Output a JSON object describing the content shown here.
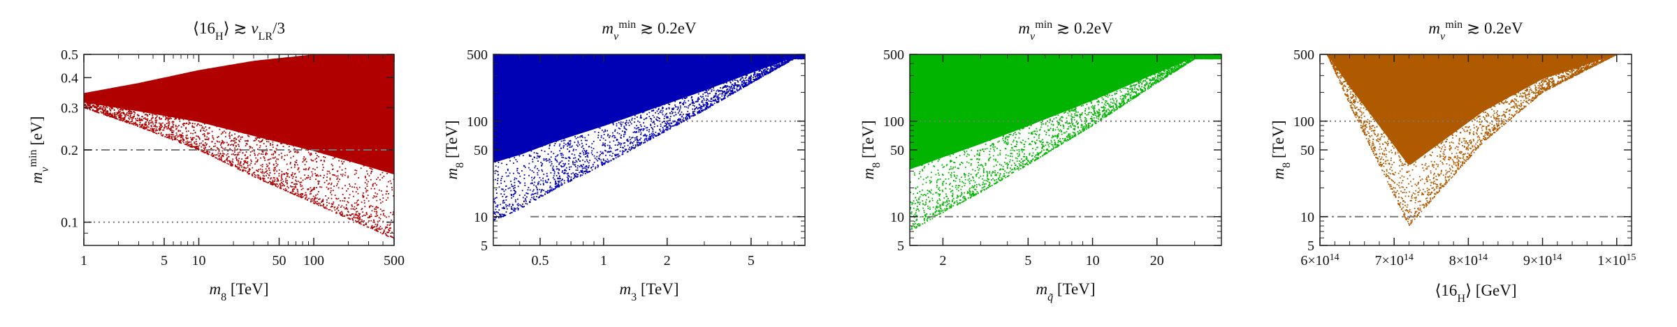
{
  "chart_data": [
    {
      "type": "scatter",
      "title": "⟨16_H⟩ ≳ v_LR/3",
      "title_parts": [
        "⟨16",
        "H",
        "⟩ ≳ ",
        "v",
        "LR",
        "/3"
      ],
      "xlabel_parts": [
        "m",
        "8",
        " [TeV]"
      ],
      "ylabel_parts": [
        "m",
        "ν",
        "min",
        " [eV]"
      ],
      "xscale": "log",
      "yscale": "log",
      "xlim": [
        1,
        500
      ],
      "ylim": [
        0.08,
        0.5
      ],
      "xticks": [
        {
          "v": 1,
          "label": "1"
        },
        {
          "v": 5,
          "label": "5"
        },
        {
          "v": 10,
          "label": "10"
        },
        {
          "v": 50,
          "label": "50"
        },
        {
          "v": 100,
          "label": "100"
        },
        {
          "v": 500,
          "label": "500"
        }
      ],
      "yticks": [
        {
          "v": 0.1,
          "label": "0.1"
        },
        {
          "v": 0.2,
          "label": "0.2"
        },
        {
          "v": 0.3,
          "label": "0.3"
        },
        {
          "v": 0.4,
          "label": "0.4"
        },
        {
          "v": 0.5,
          "label": "0.5"
        }
      ],
      "ref_lines": [
        {
          "y": 0.2,
          "style": "dashdot"
        },
        {
          "y": 0.1,
          "style": "dotted"
        }
      ],
      "color": "#b00000",
      "region": {
        "x": [
          1,
          3,
          10,
          30,
          100,
          300,
          500
        ],
        "y_low": [
          0.3,
          0.25,
          0.2,
          0.155,
          0.12,
          0.095,
          0.085
        ],
        "y_high": [
          0.345,
          0.38,
          0.43,
          0.47,
          0.5,
          0.5,
          0.5
        ]
      }
    },
    {
      "type": "scatter",
      "title": "m_ν^min ≳ 0.2eV",
      "title_parts": [
        "m",
        "ν",
        "min",
        " ≳ 0.2eV"
      ],
      "xlabel_parts": [
        "m",
        "3",
        " [TeV]"
      ],
      "ylabel_parts": [
        "m",
        "8",
        " [TeV]"
      ],
      "xscale": "log",
      "yscale": "log",
      "xlim": [
        0.3,
        9
      ],
      "ylim": [
        5,
        500
      ],
      "xticks": [
        {
          "v": 0.5,
          "label": "0.5"
        },
        {
          "v": 1,
          "label": "1"
        },
        {
          "v": 2,
          "label": "2"
        },
        {
          "v": 5,
          "label": "5"
        }
      ],
      "yticks": [
        {
          "v": 5,
          "label": "5"
        },
        {
          "v": 10,
          "label": "10"
        },
        {
          "v": 50,
          "label": "50"
        },
        {
          "v": 100,
          "label": "100"
        },
        {
          "v": 500,
          "label": "500"
        }
      ],
      "ref_lines": [
        {
          "y": 100,
          "style": "dotted",
          "x_from": 2
        },
        {
          "y": 10,
          "style": "dashdot",
          "x_from": 0.45
        }
      ],
      "color": "#0000b4",
      "region": {
        "x": [
          0.3,
          0.4,
          0.6,
          1.0,
          2.0,
          3.0,
          5.0,
          8.0
        ],
        "y_low": [
          9,
          12,
          20,
          35,
          80,
          130,
          250,
          450
        ],
        "y_high": [
          500,
          500,
          500,
          500,
          500,
          500,
          500,
          500
        ]
      }
    },
    {
      "type": "scatter",
      "title": "m_ν^min ≳ 0.2eV",
      "title_parts": [
        "m",
        "ν",
        "min",
        " ≳ 0.2eV"
      ],
      "xlabel_parts": [
        "m",
        "q̃",
        " [TeV]"
      ],
      "ylabel_parts": [
        "m",
        "8",
        " [TeV]"
      ],
      "xscale": "log",
      "yscale": "log",
      "xlim": [
        1.4,
        40
      ],
      "ylim": [
        5,
        500
      ],
      "xticks": [
        {
          "v": 2,
          "label": "2"
        },
        {
          "v": 5,
          "label": "5"
        },
        {
          "v": 10,
          "label": "10"
        },
        {
          "v": 20,
          "label": "20"
        }
      ],
      "yticks": [
        {
          "v": 5,
          "label": "5"
        },
        {
          "v": 10,
          "label": "10"
        },
        {
          "v": 50,
          "label": "50"
        },
        {
          "v": 100,
          "label": "100"
        },
        {
          "v": 500,
          "label": "500"
        }
      ],
      "ref_lines": [
        {
          "y": 100,
          "style": "dotted"
        },
        {
          "y": 10,
          "style": "dashdot"
        }
      ],
      "color": "#00b400",
      "region": {
        "x": [
          1.4,
          2,
          3,
          5,
          10,
          20,
          30
        ],
        "y_low": [
          7,
          11,
          18,
          35,
          90,
          250,
          450
        ],
        "y_high": [
          500,
          500,
          500,
          500,
          500,
          500,
          500
        ]
      }
    },
    {
      "type": "scatter",
      "title": "m_ν^min ≳ 0.2eV",
      "title_parts": [
        "m",
        "ν",
        "min",
        " ≳ 0.2eV"
      ],
      "xlabel_parts": [
        "⟨16",
        "H",
        "⟩ [GeV]"
      ],
      "ylabel_parts": [
        "m",
        "8",
        " [TeV]"
      ],
      "xscale": "linear",
      "yscale": "log",
      "xlim": [
        600000000000000.0,
        1020000000000000.0
      ],
      "ylim": [
        5,
        500
      ],
      "xticks": [
        {
          "v": 600000000000000.0,
          "base": "6×10",
          "exp": "14"
        },
        {
          "v": 700000000000000.0,
          "base": "7×10",
          "exp": "14"
        },
        {
          "v": 800000000000000.0,
          "base": "8×10",
          "exp": "14"
        },
        {
          "v": 900000000000000.0,
          "base": "9×10",
          "exp": "14"
        },
        {
          "v": 1000000000000000.0,
          "base": "1×10",
          "exp": "15"
        }
      ],
      "yticks": [
        {
          "v": 5,
          "label": "5"
        },
        {
          "v": 10,
          "label": "10"
        },
        {
          "v": 50,
          "label": "50"
        },
        {
          "v": 100,
          "label": "100"
        },
        {
          "v": 500,
          "label": "500"
        }
      ],
      "ref_lines": [
        {
          "y": 100,
          "style": "dotted"
        },
        {
          "y": 10,
          "style": "dashdot"
        }
      ],
      "color": "#b05a00",
      "region": {
        "x": [
          610000000000000.0,
          640000000000000.0,
          680000000000000.0,
          720000000000000.0,
          760000000000000.0,
          820000000000000.0,
          900000000000000.0,
          1000000000000000.0
        ],
        "y_low": [
          500,
          150,
          35,
          8,
          18,
          60,
          200,
          500
        ],
        "y_high": [
          500,
          500,
          500,
          500,
          500,
          500,
          500,
          500
        ]
      }
    }
  ]
}
